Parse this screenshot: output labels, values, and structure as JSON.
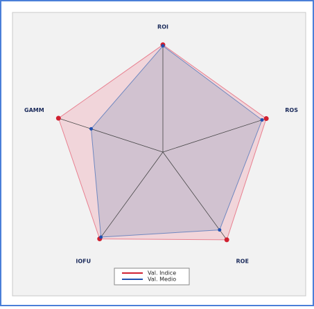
{
  "chart_data": {
    "type": "radar",
    "categories": [
      "ROI",
      "ROS",
      "ROE",
      "IOFU",
      "GAMM"
    ],
    "ylim": [
      0,
      100
    ],
    "series": [
      {
        "name": "Val. Indice",
        "color": "#d02030",
        "values": [
          97,
          98,
          98,
          97,
          99
        ]
      },
      {
        "name": "Val. Medio",
        "color": "#2050b0",
        "values": [
          96,
          94,
          87,
          95,
          68
        ]
      }
    ]
  }
}
